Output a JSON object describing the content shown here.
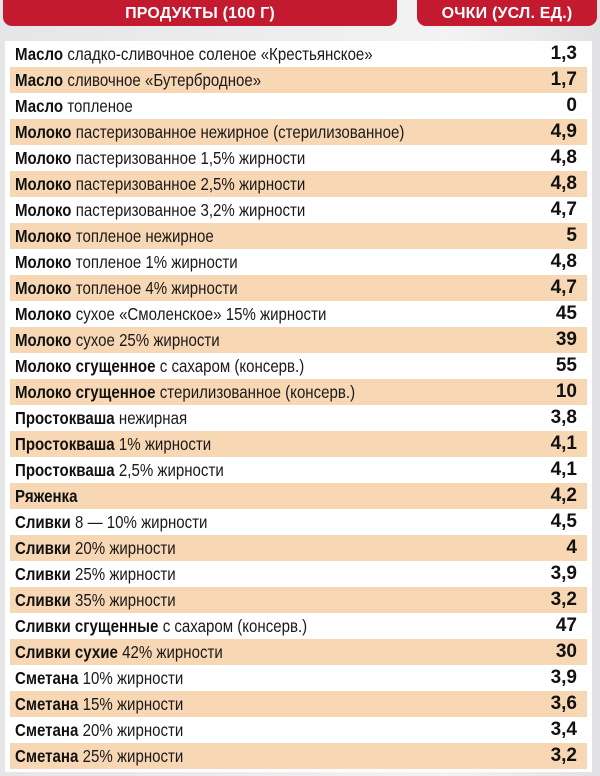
{
  "header": {
    "products_label": "ПРОДУКТЫ (100 Г)",
    "score_label": "ОЧКИ (УСЛ. ЕД.)",
    "accent_color": "#c41a30",
    "row_highlight_color": "#f8d7b4"
  },
  "rows": [
    {
      "bold": "Масло",
      "desc": "сладко-сливочное соленое «Крестьянское»",
      "value": "1,3"
    },
    {
      "bold": "Масло",
      "desc": "сливочное «Бутербродное»",
      "value": "1,7"
    },
    {
      "bold": "Масло",
      "desc": "топленое",
      "value": "0"
    },
    {
      "bold": "Молоко",
      "desc": "пастеризованное нежирное (стерилизованное)",
      "value": "4,9"
    },
    {
      "bold": "Молоко",
      "desc": "пастеризованное 1,5% жирности",
      "value": "4,8"
    },
    {
      "bold": "Молоко",
      "desc": "пастеризованное 2,5% жирности",
      "value": "4,8"
    },
    {
      "bold": "Молоко",
      "desc": "пастеризованное 3,2% жирности",
      "value": "4,7"
    },
    {
      "bold": "Молоко",
      "desc": "топленое нежирное",
      "value": "5"
    },
    {
      "bold": "Молоко",
      "desc": "топленое 1% жирности",
      "value": "4,8"
    },
    {
      "bold": "Молоко",
      "desc": "топленое 4% жирности",
      "value": "4,7"
    },
    {
      "bold": "Молоко",
      "desc": "сухое «Смоленское» 15% жирности",
      "value": "45"
    },
    {
      "bold": "Молоко",
      "desc": "сухое 25% жирности",
      "value": "39"
    },
    {
      "bold": "Молоко сгущенное",
      "desc": "с сахаром (консерв.)",
      "value": "55"
    },
    {
      "bold": "Молоко сгущенное",
      "desc": "стерилизованное (консерв.)",
      "value": "10"
    },
    {
      "bold": "Простокваша",
      "desc": "нежирная",
      "value": "3,8"
    },
    {
      "bold": "Простокваша",
      "desc": "1% жирности",
      "value": "4,1"
    },
    {
      "bold": "Простокваша",
      "desc": "2,5% жирности",
      "value": "4,1"
    },
    {
      "bold": "Ряженка",
      "desc": "",
      "value": "4,2"
    },
    {
      "bold": "Сливки",
      "desc": "8 — 10% жирности",
      "value": "4,5"
    },
    {
      "bold": "Сливки",
      "desc": "20% жирности",
      "value": "4"
    },
    {
      "bold": "Сливки",
      "desc": "25% жирности",
      "value": "3,9"
    },
    {
      "bold": "Сливки",
      "desc": "35% жирности",
      "value": "3,2"
    },
    {
      "bold": "Сливки сгущенные",
      "desc": "с сахаром (консерв.)",
      "value": "47"
    },
    {
      "bold": "Сливки сухие",
      "desc": "42% жирности",
      "value": "30"
    },
    {
      "bold": "Сметана",
      "desc": "10% жирности",
      "value": "3,9"
    },
    {
      "bold": "Сметана",
      "desc": "15% жирности",
      "value": "3,6"
    },
    {
      "bold": "Сметана",
      "desc": "20% жирности",
      "value": "3,4"
    },
    {
      "bold": "Сметана",
      "desc": "25% жирности",
      "value": "3,2"
    }
  ]
}
